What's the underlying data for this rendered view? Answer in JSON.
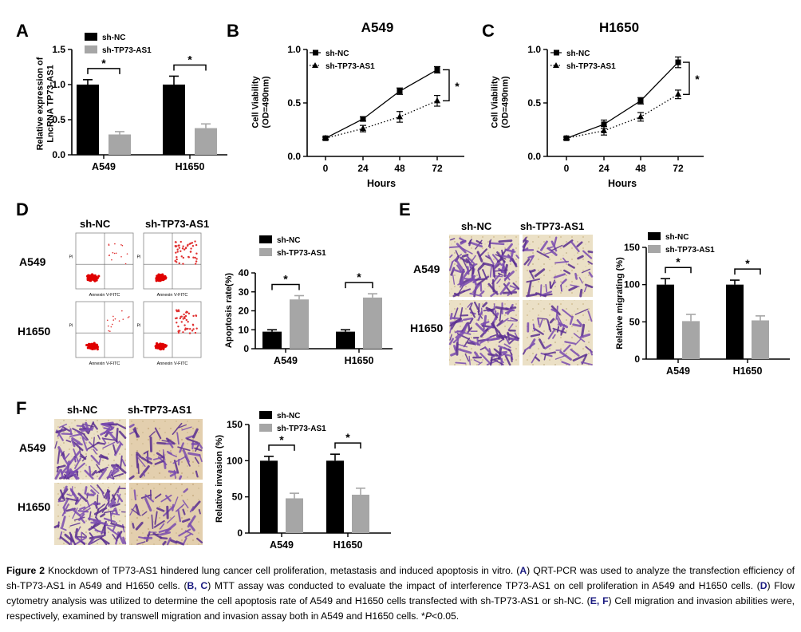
{
  "panel_letters": [
    "A",
    "B",
    "C",
    "D",
    "E",
    "F"
  ],
  "legend": {
    "nc": "sh-NC",
    "kd": "sh-TP73-AS1"
  },
  "significance": "*",
  "panel_d": {
    "column_headers": [
      "sh-NC",
      "sh-TP73-AS1"
    ],
    "row_labels": [
      "A549",
      "H1650"
    ],
    "flow_xlabel": "Annexin V-FITC",
    "flow_ylabel": "PI"
  },
  "panel_e": {
    "column_headers": [
      "sh-NC",
      "sh-TP73-AS1"
    ],
    "row_labels": [
      "A549",
      "H1650"
    ]
  },
  "panel_f": {
    "column_headers": [
      "sh-NC",
      "sh-TP73-AS1"
    ],
    "row_labels": [
      "A549",
      "H1650"
    ]
  },
  "colors": {
    "nc_bar": "#000000",
    "kd_bar": "#a6a6a6",
    "stain": "#6b3fa0",
    "background_cells": "#e8dcc0"
  },
  "chart_data": [
    {
      "panel": "A",
      "type": "bar",
      "categories": [
        "A549",
        "H1650"
      ],
      "series": [
        {
          "name": "sh-NC",
          "values": [
            1.0,
            1.0
          ],
          "errors": [
            0.07,
            0.12
          ]
        },
        {
          "name": "sh-TP73-AS1",
          "values": [
            0.29,
            0.38
          ],
          "errors": [
            0.04,
            0.06
          ]
        }
      ],
      "ylabel_lines": [
        "Relative expression of",
        "LncRNA TP73-AS1"
      ],
      "ylim": [
        0,
        1.5
      ],
      "yticks": [
        "0.0",
        "0.5",
        "1.0",
        "1.5"
      ],
      "legend_position": "top-left"
    },
    {
      "panel": "B",
      "type": "line",
      "title": "A549",
      "x": [
        0,
        24,
        48,
        72
      ],
      "xticks": [
        "0",
        "24",
        "48",
        "72"
      ],
      "series": [
        {
          "name": "sh-NC",
          "values": [
            0.17,
            0.35,
            0.61,
            0.81
          ],
          "errors": [
            0.01,
            0.02,
            0.03,
            0.03
          ],
          "style": "solid",
          "marker": "square"
        },
        {
          "name": "sh-TP73-AS1",
          "values": [
            0.17,
            0.26,
            0.37,
            0.52
          ],
          "errors": [
            0.01,
            0.03,
            0.05,
            0.05
          ],
          "style": "dotted",
          "marker": "triangle"
        }
      ],
      "xlabel": "Hours",
      "ylabel_lines": [
        "Cell Viability",
        "(OD=490nm)"
      ],
      "ylim": [
        0,
        1.0
      ],
      "yticks": [
        "0.0",
        "0.5",
        "1.0"
      ],
      "legend_position": "top-left"
    },
    {
      "panel": "C",
      "type": "line",
      "title": "H1650",
      "x": [
        0,
        24,
        48,
        72
      ],
      "xticks": [
        "0",
        "24",
        "48",
        "72"
      ],
      "series": [
        {
          "name": "sh-NC",
          "values": [
            0.17,
            0.3,
            0.52,
            0.88
          ],
          "errors": [
            0.01,
            0.04,
            0.03,
            0.05
          ],
          "style": "solid",
          "marker": "square"
        },
        {
          "name": "sh-TP73-AS1",
          "values": [
            0.17,
            0.24,
            0.37,
            0.58
          ],
          "errors": [
            0.01,
            0.04,
            0.04,
            0.04
          ],
          "style": "dotted",
          "marker": "triangle"
        }
      ],
      "xlabel": "Hours",
      "ylabel_lines": [
        "Cell Viability",
        "(OD=490nm)"
      ],
      "ylim": [
        0,
        1.0
      ],
      "yticks": [
        "0.0",
        "0.5",
        "1.0"
      ],
      "legend_position": "top-left"
    },
    {
      "panel": "D",
      "type": "bar",
      "categories": [
        "A549",
        "H1650"
      ],
      "series": [
        {
          "name": "sh-NC",
          "values": [
            9,
            9
          ],
          "errors": [
            1,
            1
          ]
        },
        {
          "name": "sh-TP73-AS1",
          "values": [
            26,
            27
          ],
          "errors": [
            2,
            2
          ]
        }
      ],
      "ylabel_lines": [
        "Apoptosis rate(%)"
      ],
      "ylim": [
        0,
        40
      ],
      "yticks": [
        "0",
        "10",
        "20",
        "30",
        "40"
      ],
      "legend_position": "top-left"
    },
    {
      "panel": "E",
      "type": "bar",
      "categories": [
        "A549",
        "H1650"
      ],
      "series": [
        {
          "name": "sh-NC",
          "values": [
            100,
            100
          ],
          "errors": [
            8,
            6
          ]
        },
        {
          "name": "sh-TP73-AS1",
          "values": [
            51,
            52
          ],
          "errors": [
            9,
            6
          ]
        }
      ],
      "ylabel_lines": [
        "Relative migrating (%)"
      ],
      "ylim": [
        0,
        150
      ],
      "yticks": [
        "0",
        "50",
        "100",
        "150"
      ],
      "legend_position": "top-left"
    },
    {
      "panel": "F",
      "type": "bar",
      "categories": [
        "A549",
        "H1650"
      ],
      "series": [
        {
          "name": "sh-NC",
          "values": [
            100,
            100
          ],
          "errors": [
            6,
            9
          ]
        },
        {
          "name": "sh-TP73-AS1",
          "values": [
            48,
            53
          ],
          "errors": [
            7,
            9
          ]
        }
      ],
      "ylabel_lines": [
        "Relative invasion (%)"
      ],
      "ylim": [
        0,
        150
      ],
      "yticks": [
        "0",
        "50",
        "100",
        "150"
      ],
      "legend_position": "top-left"
    }
  ],
  "caption": {
    "label": "Figure 2",
    "s1": " Knockdown of TP73-AS1 hindered lung cancer cell proliferation, metastasis and induced apoptosis in vitro. (",
    "l1": "A",
    "s2": ") QRT-PCR was used to analyze the transfection efficiency of sh-TP73-AS1 in A549 and H1650 cells. (",
    "l2": "B, C",
    "s3": ") MTT assay was conducted to evaluate the impact of interference TP73-AS1 on cell proliferation in A549 and H1650 cells. (",
    "l3": "D",
    "s4": ") Flow cytometry analysis was utilized to determine the cell apoptosis rate of A549 and H1650 cells transfected with sh-TP73-AS1 or sh-NC. (",
    "l4": "E, F",
    "s5": ") Cell migration and invasion abilities were, respectively, examined by transwell migration and invasion assay both in A549 and H1650 cells. *",
    "p": "P",
    "s6": "<0.05."
  }
}
